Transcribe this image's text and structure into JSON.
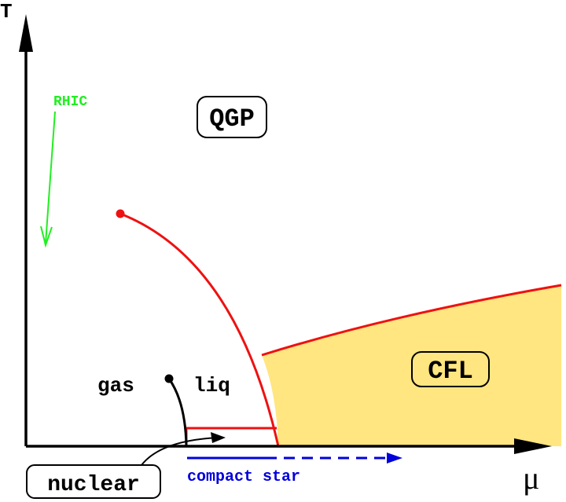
{
  "axes": {
    "y_label": "T",
    "x_label": "μ"
  },
  "annotations": {
    "rhic": "RHIC",
    "qgp": "QGP",
    "cfl": "CFL",
    "gas": "gas",
    "liq": "liq",
    "nuclear": "nuclear",
    "compact_star": "compact star"
  },
  "colors": {
    "phase_line": "#ee1111",
    "cfl_fill": "#ffe680",
    "rhic": "#22ee22",
    "compact_star": "#0000dd",
    "axes": "#000000"
  }
}
